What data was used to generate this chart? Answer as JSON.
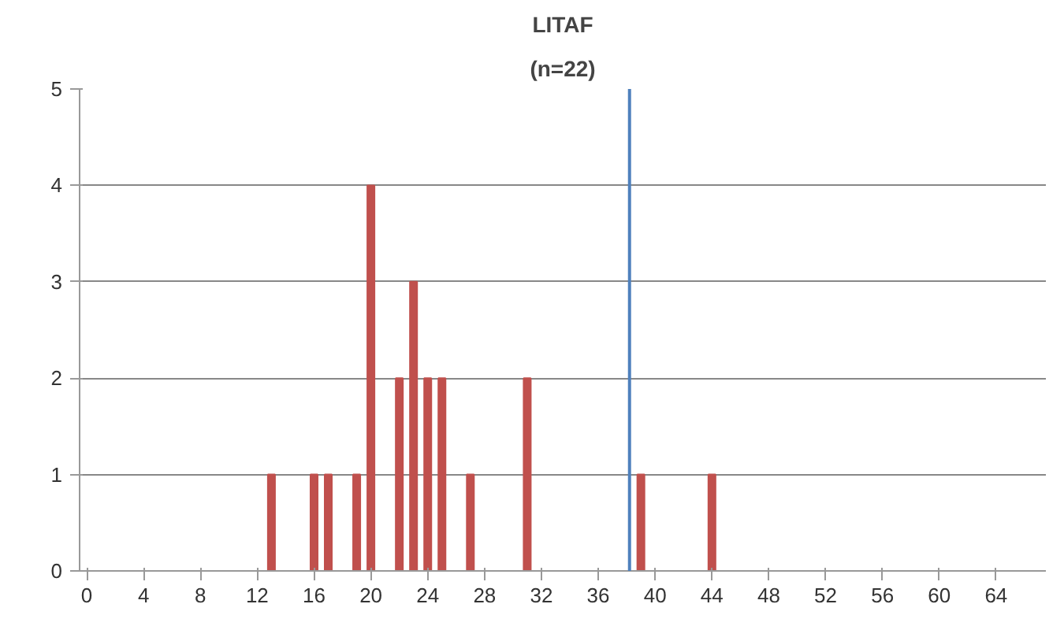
{
  "chart_data": {
    "type": "bar",
    "title": "LITAF",
    "subtitle": "(n=22)",
    "x": [
      13,
      16,
      17,
      19,
      20,
      22,
      23,
      24,
      25,
      27,
      31,
      39,
      44
    ],
    "values": [
      1,
      1,
      1,
      1,
      4,
      2,
      3,
      2,
      2,
      1,
      2,
      1,
      1
    ],
    "color": "#c0504d",
    "xlim": [
      -0.5,
      67.5
    ],
    "xticks": [
      0,
      4,
      8,
      12,
      16,
      20,
      24,
      28,
      32,
      36,
      40,
      44,
      48,
      52,
      56,
      60,
      64
    ],
    "ylim": [
      0,
      5
    ],
    "yticks": [
      0,
      1,
      2,
      3,
      4,
      5
    ],
    "grid": "y",
    "ref_lines": [
      {
        "axis": "x",
        "value": 38.2,
        "color": "#4f81bd"
      }
    ]
  }
}
